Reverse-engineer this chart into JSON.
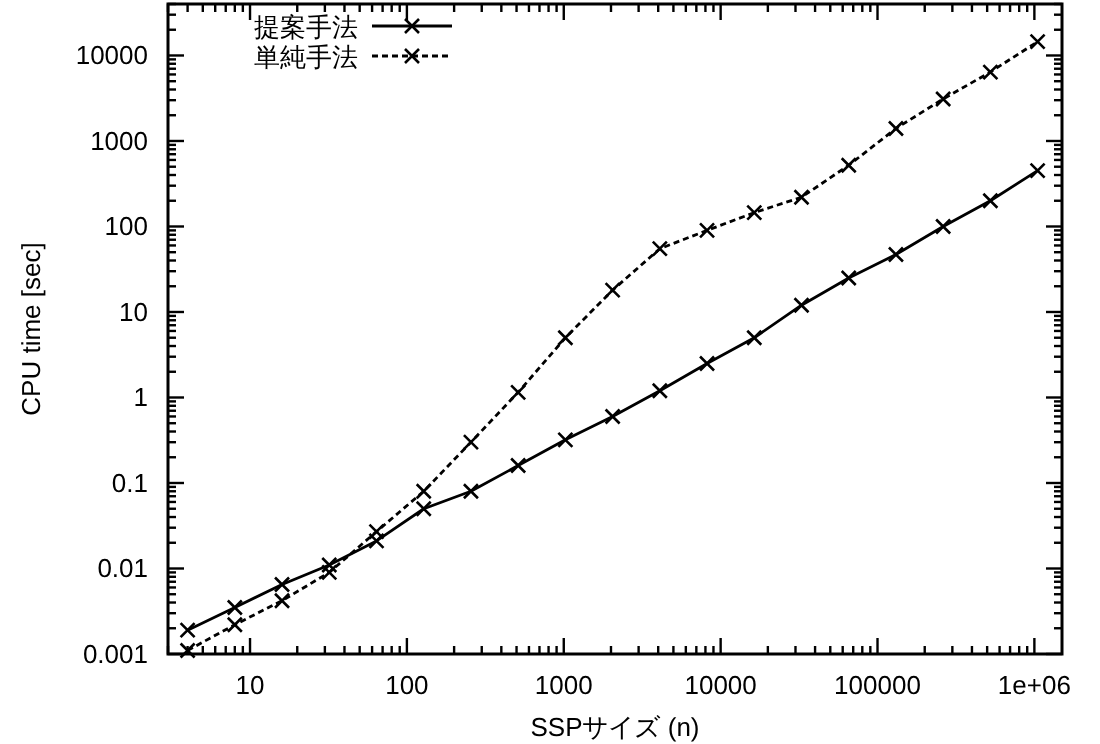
{
  "chart_data": {
    "type": "line",
    "xlabel": "SSPサイズ (n)",
    "ylabel": "CPU time [sec]",
    "log": "xy",
    "legend": "top left",
    "grid": false,
    "xlim": [
      3,
      1500000
    ],
    "xticks": [
      10,
      100,
      1000,
      10000,
      100000,
      {
        "value": 1000000,
        "label": "1e+06"
      }
    ],
    "ylim": [
      0.001,
      40000
    ],
    "yticks": [
      0.001,
      0.01,
      0.1,
      1,
      10,
      100,
      1000,
      10000
    ],
    "series": [
      {
        "name": "提案手法",
        "color": "#000000",
        "line_style": "solid",
        "marker": "cross",
        "x": [
          4,
          8,
          16,
          32,
          64,
          128,
          256,
          512,
          1024,
          2048,
          4096,
          8192,
          16384,
          32768,
          65536,
          131072,
          262144,
          524288,
          1048576
        ],
        "values": [
          0.0019,
          0.0035,
          0.0065,
          0.011,
          0.021,
          0.05,
          0.08,
          0.16,
          0.32,
          0.6,
          1.2,
          2.5,
          5,
          12,
          25,
          47,
          100,
          200,
          450
        ]
      },
      {
        "name": "単純手法",
        "color": "#000000",
        "line_style": "dashed",
        "marker": "cross",
        "x": [
          4,
          8,
          16,
          32,
          64,
          128,
          256,
          512,
          1024,
          2048,
          4096,
          8192,
          16384,
          32768,
          65536,
          131072,
          262144,
          524288,
          1048576
        ],
        "values": [
          0.0011,
          0.0022,
          0.0042,
          0.009,
          0.027,
          0.08,
          0.3,
          1.15,
          5,
          18,
          55,
          90,
          145,
          220,
          520,
          1400,
          3100,
          6400,
          14500
        ]
      }
    ]
  }
}
